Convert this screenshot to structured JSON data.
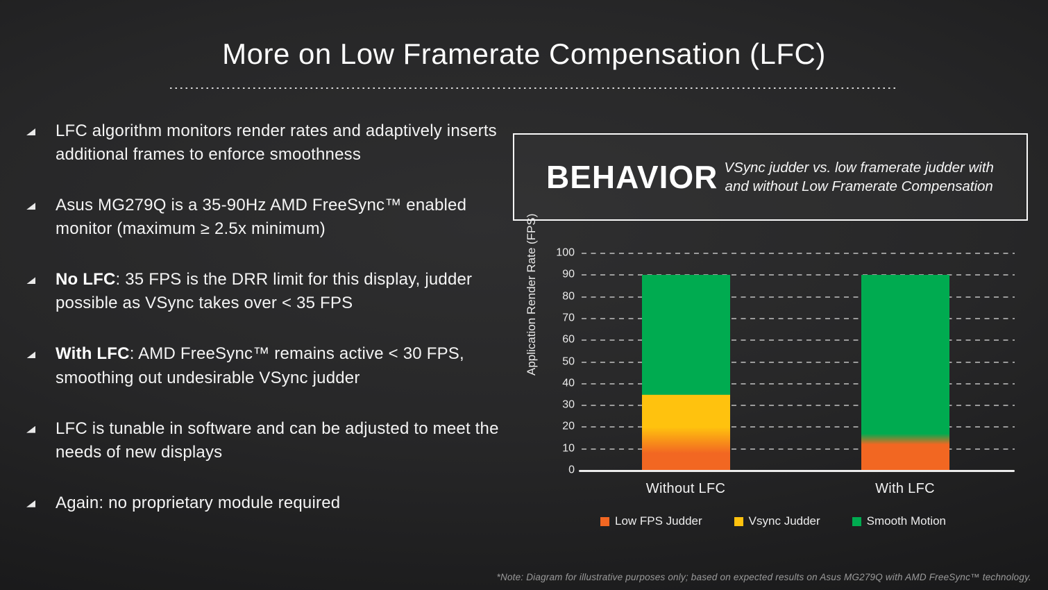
{
  "slide": {
    "title": "More on Low Framerate Compensation (LFC)",
    "footnote": "*Note: Diagram for illustrative purposes only; based on expected results on Asus MG279Q with AMD FreeSync™ technology."
  },
  "bullets": [
    {
      "bold": "",
      "rest": "LFC algorithm monitors render rates and adaptively inserts additional frames to enforce smoothness"
    },
    {
      "bold": "",
      "rest": "Asus MG279Q is a 35-90Hz AMD FreeSync™ enabled monitor (maximum ≥ 2.5x minimum)"
    },
    {
      "bold": "No LFC",
      "rest": ": 35 FPS is the DRR limit for this display, judder possible as VSync takes over < 35 FPS"
    },
    {
      "bold": "With LFC",
      "rest": ": AMD FreeSync™ remains active < 30 FPS, smoothing out undesirable VSync judder"
    },
    {
      "bold": "",
      "rest": "LFC is tunable in software and can be adjusted to meet the needs of new displays"
    },
    {
      "bold": "",
      "rest": "Again: no proprietary module required"
    }
  ],
  "behavior_box": {
    "heading": "BEHAVIOR",
    "subtitle": "VSync judder vs. low framerate judder with and without Low Framerate Compensation"
  },
  "chart_data": {
    "type": "bar",
    "stacked": true,
    "ylabel": "Application Render Rate (FPS)",
    "ylim": [
      0,
      100
    ],
    "ytick_step": 10,
    "grid": "dashed-horizontal",
    "legend_position": "bottom",
    "categories": [
      "Without LFC",
      "With LFC"
    ],
    "series": [
      {
        "name": "Low FPS Judder",
        "color": "#F26722",
        "values": [
          10,
          14
        ]
      },
      {
        "name": "Vsync Judder",
        "color": "#FFC20E",
        "values": [
          25,
          0
        ]
      },
      {
        "name": "Smooth Motion",
        "color": "#00AB50",
        "values": [
          55,
          76
        ]
      }
    ],
    "bar_totals": [
      90,
      90
    ],
    "bars": [
      {
        "category": "Without LFC",
        "top": 90,
        "gradient_stops": [
          {
            "v": 0,
            "color": "#F26722"
          },
          {
            "v": 8,
            "color": "#F26722"
          },
          {
            "v": 20,
            "color": "#FFC20E"
          },
          {
            "v": 34.7,
            "color": "#FFC20E"
          },
          {
            "v": 35,
            "color": "#00AB50"
          },
          {
            "v": 90,
            "color": "#00AB50"
          }
        ]
      },
      {
        "category": "With LFC",
        "top": 90,
        "gradient_stops": [
          {
            "v": 0,
            "color": "#F26722"
          },
          {
            "v": 12,
            "color": "#F26722"
          },
          {
            "v": 17,
            "color": "#00AB50"
          },
          {
            "v": 90,
            "color": "#00AB50"
          }
        ]
      }
    ]
  }
}
